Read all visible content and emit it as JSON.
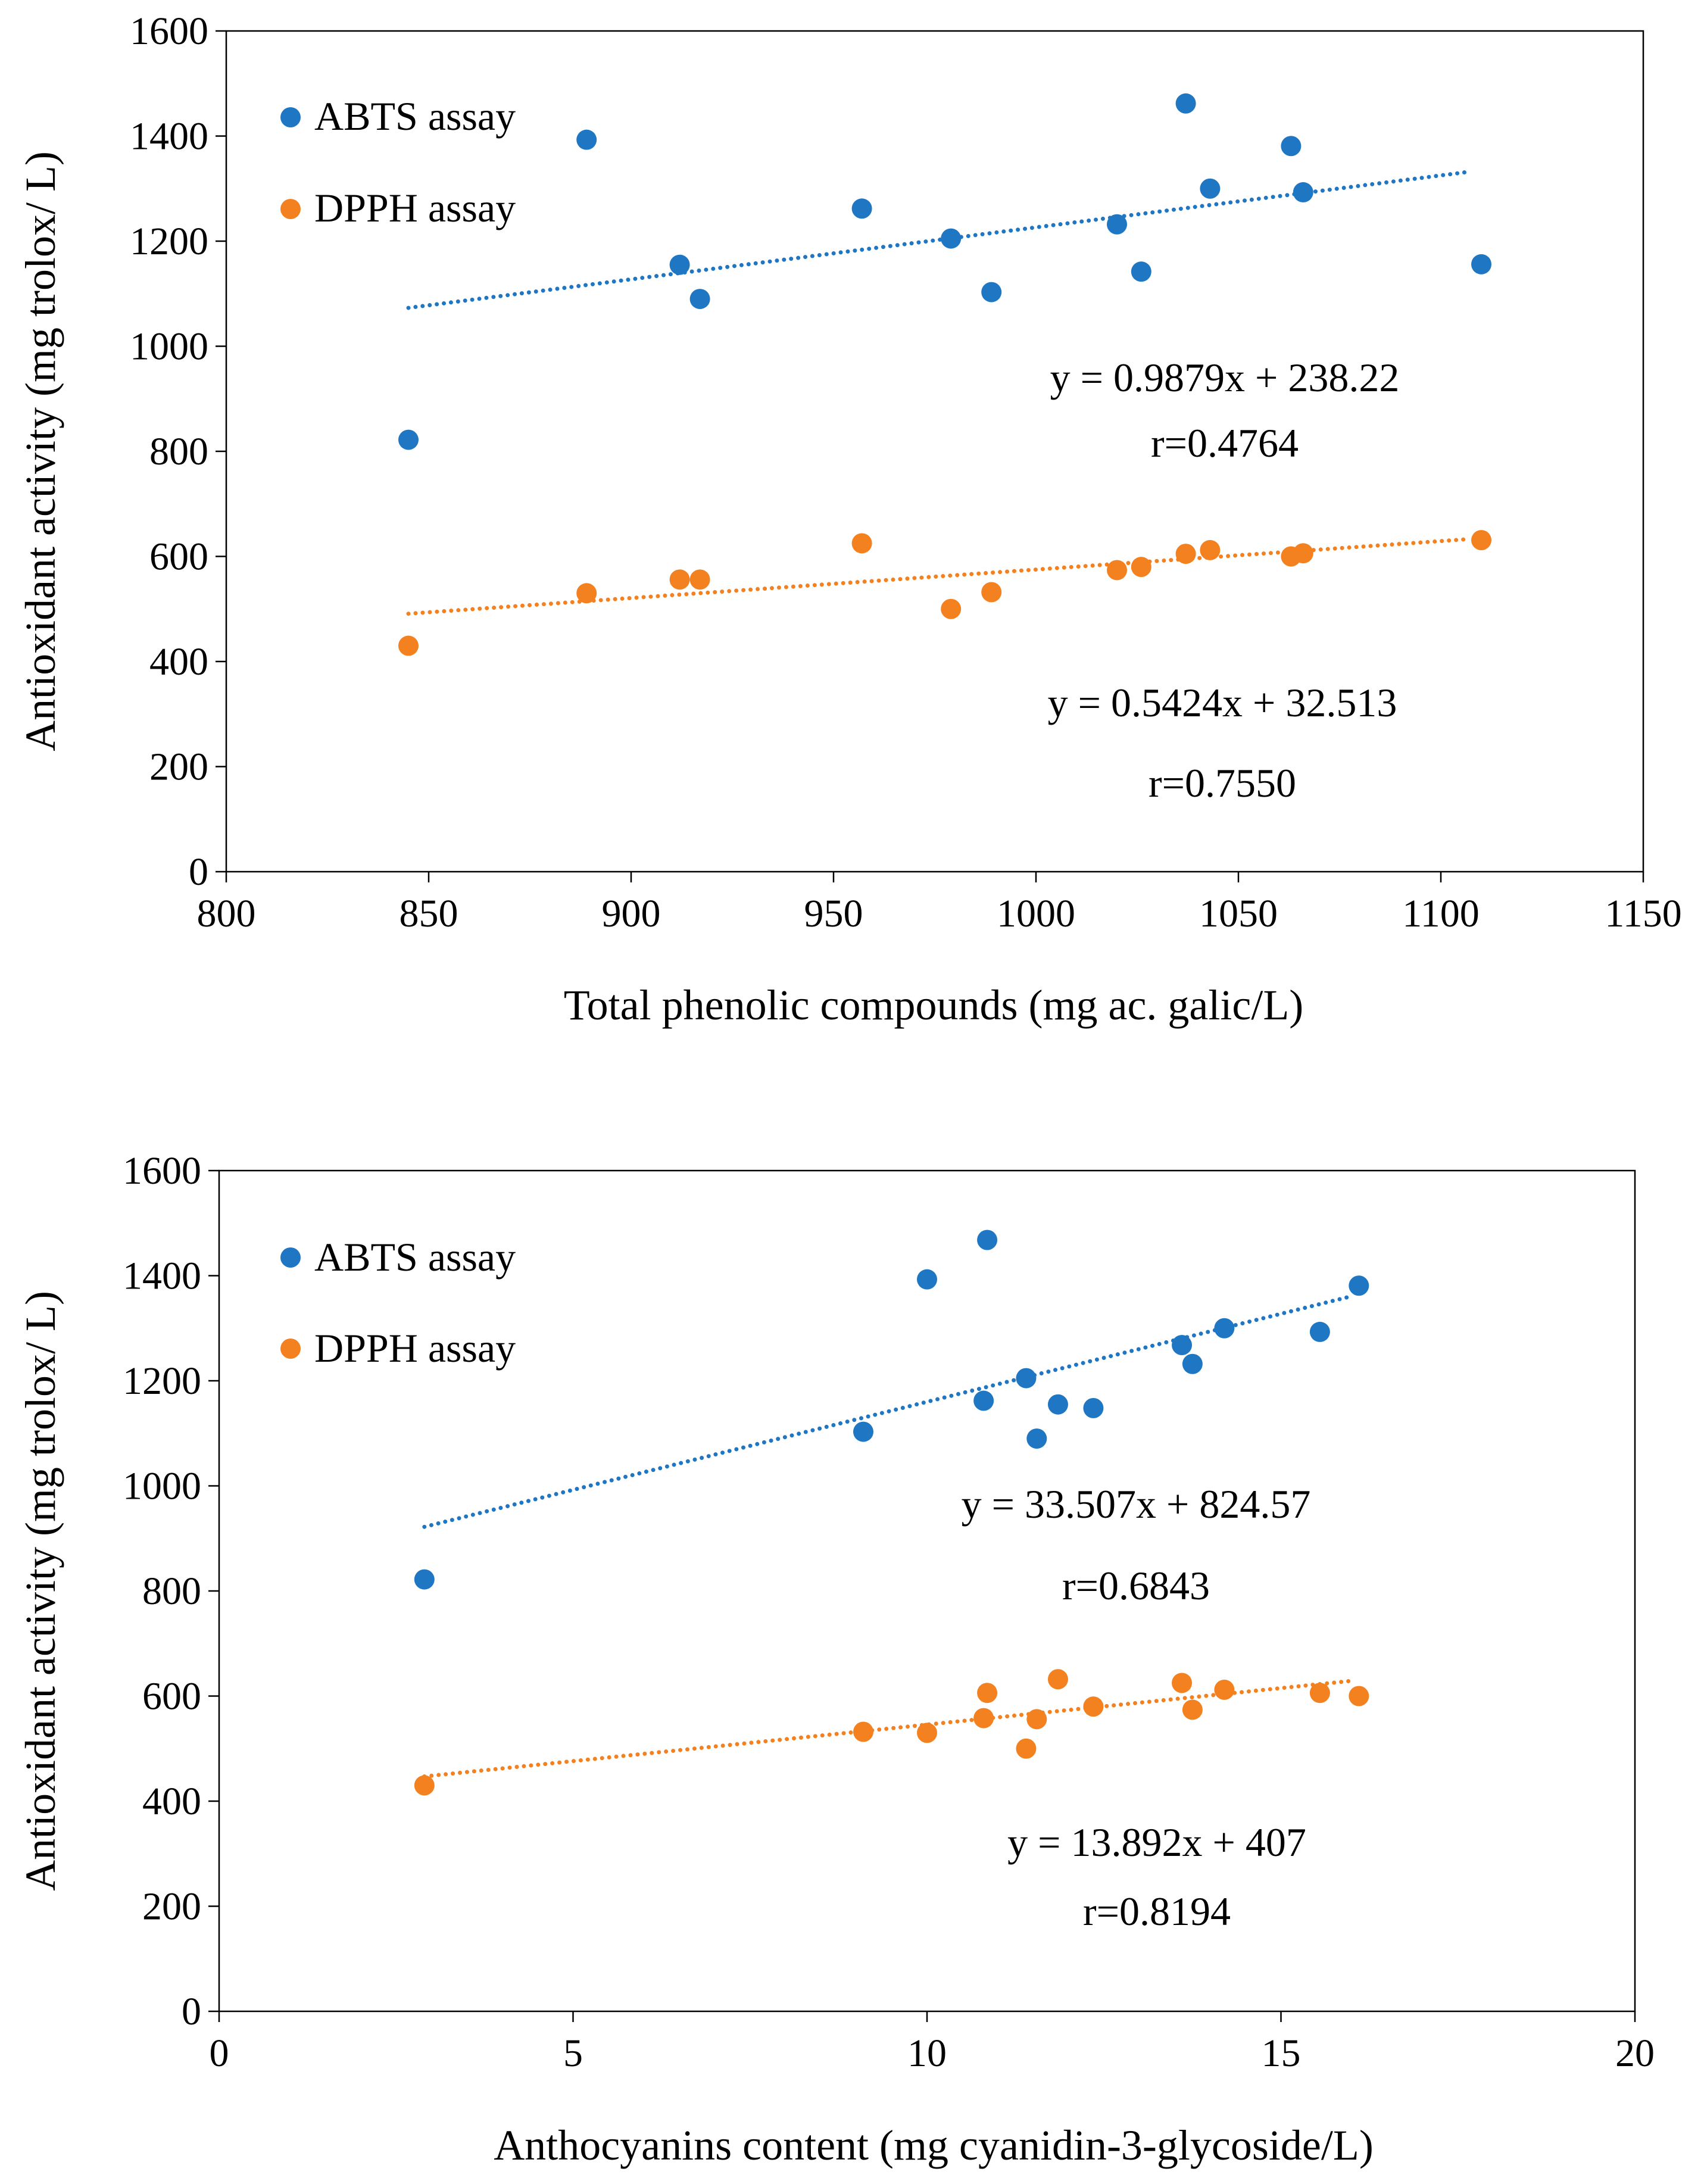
{
  "colors": {
    "abts": "#1f77c4",
    "dpph": "#f4811f"
  },
  "chart_data": [
    {
      "type": "scatter",
      "xlabel": "Total phenolic  compounds  (mg ac. galic/L)",
      "ylabel": "Antioxidant  activity  (mg trolox/ L)",
      "xlim": [
        800,
        1150
      ],
      "ylim": [
        0,
        1600
      ],
      "xticks": [
        "800",
        "850",
        "900",
        "950",
        "1000",
        "1050",
        "1100",
        "1150"
      ],
      "yticks": [
        "0",
        "200",
        "400",
        "600",
        "800",
        "1000",
        "1200",
        "1400",
        "1600"
      ],
      "xtick_values": [
        800,
        850,
        900,
        950,
        1000,
        1050,
        1100,
        1150
      ],
      "ytick_values": [
        0,
        200,
        400,
        600,
        800,
        1000,
        1200,
        1400,
        1600
      ],
      "legend": [
        "ABTS assay",
        "DPPH assay"
      ],
      "series": [
        {
          "name": "ABTS assay",
          "color_key": "abts",
          "x": [
            845,
            889,
            912,
            917,
            957,
            979,
            989,
            1020,
            1026,
            1037,
            1043,
            1063,
            1066,
            1110
          ],
          "y": [
            822,
            1393,
            1155,
            1090,
            1262,
            1205,
            1103,
            1232,
            1142,
            1462,
            1300,
            1381,
            1293,
            1156
          ],
          "trend": {
            "x": [
              845,
              1107
            ],
            "y": [
              1073,
              1332
            ]
          },
          "equation": "y = 0.9879x + 238.22",
          "r": "r=0.4764"
        },
        {
          "name": "DPPH assay",
          "color_key": "dpph",
          "x": [
            845,
            889,
            912,
            917,
            957,
            979,
            989,
            1020,
            1026,
            1037,
            1043,
            1063,
            1066,
            1110
          ],
          "y": [
            430,
            530,
            556,
            556,
            625,
            500,
            532,
            574,
            580,
            605,
            612,
            600,
            606,
            631
          ],
          "trend": {
            "x": [
              845,
              1107
            ],
            "y": [
              491,
              633
            ]
          },
          "equation": "y = 0.5424x + 32.513",
          "r": "r=0.7550"
        }
      ]
    },
    {
      "type": "scatter",
      "xlabel": "Anthocyanins  content  (mg cyanidin-3-glycoside/L)",
      "ylabel": "Antioxidant  activity  (mg trolox/ L)",
      "xlim": [
        0,
        20
      ],
      "ylim": [
        0,
        1600
      ],
      "xticks": [
        "0",
        "5",
        "10",
        "15",
        "20"
      ],
      "yticks": [
        "0",
        "200",
        "400",
        "600",
        "800",
        "1000",
        "1200",
        "1400",
        "1600"
      ],
      "xtick_values": [
        0,
        5,
        10,
        15,
        20
      ],
      "ytick_values": [
        0,
        200,
        400,
        600,
        800,
        1000,
        1200,
        1400,
        1600
      ],
      "legend": [
        "ABTS assay",
        "DPPH assay"
      ],
      "series": [
        {
          "name": "ABTS assay",
          "color_key": "abts",
          "x": [
            2.9,
            9.1,
            10.0,
            10.8,
            10.85,
            11.4,
            11.55,
            11.85,
            12.35,
            13.6,
            13.75,
            14.2,
            15.55,
            16.1
          ],
          "y": [
            822,
            1103,
            1393,
            1162,
            1468,
            1205,
            1090,
            1155,
            1148,
            1268,
            1232,
            1300,
            1293,
            1381
          ],
          "trend": {
            "x": [
              2.9,
              16.0
            ],
            "y": [
              922,
              1361
            ]
          },
          "equation": "y = 33.507x + 824.57",
          "r": "r=0.6843"
        },
        {
          "name": "DPPH assay",
          "color_key": "dpph",
          "x": [
            2.9,
            9.1,
            10.0,
            10.8,
            10.85,
            11.4,
            11.55,
            11.85,
            12.35,
            13.6,
            13.75,
            14.2,
            15.55,
            16.1
          ],
          "y": [
            430,
            532,
            530,
            558,
            606,
            500,
            556,
            632,
            580,
            625,
            574,
            612,
            606,
            600
          ],
          "trend": {
            "x": [
              2.9,
              16.0
            ],
            "y": [
              447,
              629
            ]
          },
          "equation": "y = 13.892x + 407",
          "r": "r=0.8194"
        }
      ]
    }
  ]
}
